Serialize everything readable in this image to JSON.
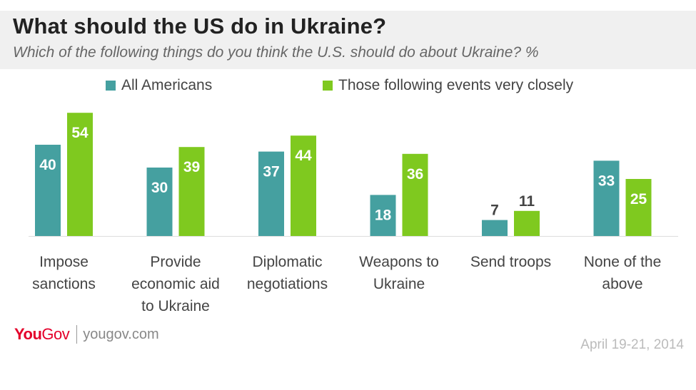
{
  "title": "What should the US do in Ukraine?",
  "subtitle": "Which of the following things do you think the U.S. should do about Ukraine? %",
  "colors": {
    "all": "#45a0a0",
    "close": "#7fc91f",
    "header_bg": "#f0f0f0",
    "brand": "#e4002b"
  },
  "chart_data": {
    "type": "bar",
    "title": "What should the US do in Ukraine?",
    "subtitle": "Which of the following things do you think the U.S. should do about Ukraine? %",
    "categories": [
      [
        "Impose",
        "sanctions"
      ],
      [
        "Provide",
        "economic aid",
        "to Ukraine"
      ],
      [
        "Diplomatic",
        "negotiations"
      ],
      [
        "Weapons to",
        "Ukraine"
      ],
      [
        "Send troops"
      ],
      [
        "None of the",
        "above"
      ]
    ],
    "series": [
      {
        "name": "All Americans",
        "values": [
          40,
          30,
          37,
          18,
          7,
          33
        ],
        "color": "#45a0a0"
      },
      {
        "name": "Those following events very closely",
        "values": [
          54,
          39,
          44,
          36,
          11,
          25
        ],
        "color": "#7fc91f"
      }
    ],
    "ylim": [
      0,
      60
    ],
    "xlabel": "",
    "ylabel": "",
    "grid": false,
    "legend": "top"
  },
  "footer": {
    "logo_you": "You",
    "logo_gov": "Gov",
    "url": "yougov.com",
    "date": "April 19-21, 2014"
  }
}
